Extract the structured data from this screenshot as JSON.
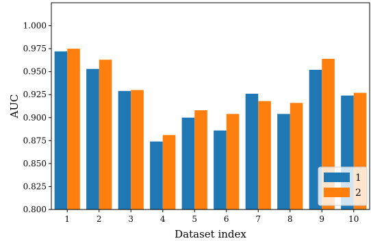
{
  "chart_data": {
    "type": "bar",
    "xlabel": "Dataset index",
    "ylabel": "AUC",
    "categories": [
      "1",
      "2",
      "3",
      "4",
      "5",
      "6",
      "7",
      "8",
      "9",
      "10"
    ],
    "ylim": [
      0.8,
      1.025
    ],
    "yticks": [
      "0.800",
      "0.825",
      "0.850",
      "0.875",
      "0.900",
      "0.925",
      "0.950",
      "0.975",
      "1.000"
    ],
    "legend_position": "lower-right",
    "grid": false,
    "series": [
      {
        "name": "1",
        "color": "#1f77b4",
        "values": [
          0.972,
          0.953,
          0.929,
          0.874,
          0.9,
          0.886,
          0.926,
          0.904,
          0.952,
          0.924
        ]
      },
      {
        "name": "2",
        "color": "#ff7f0e",
        "values": [
          0.975,
          0.963,
          0.93,
          0.881,
          0.908,
          0.904,
          0.918,
          0.916,
          0.964,
          0.927
        ]
      }
    ]
  }
}
